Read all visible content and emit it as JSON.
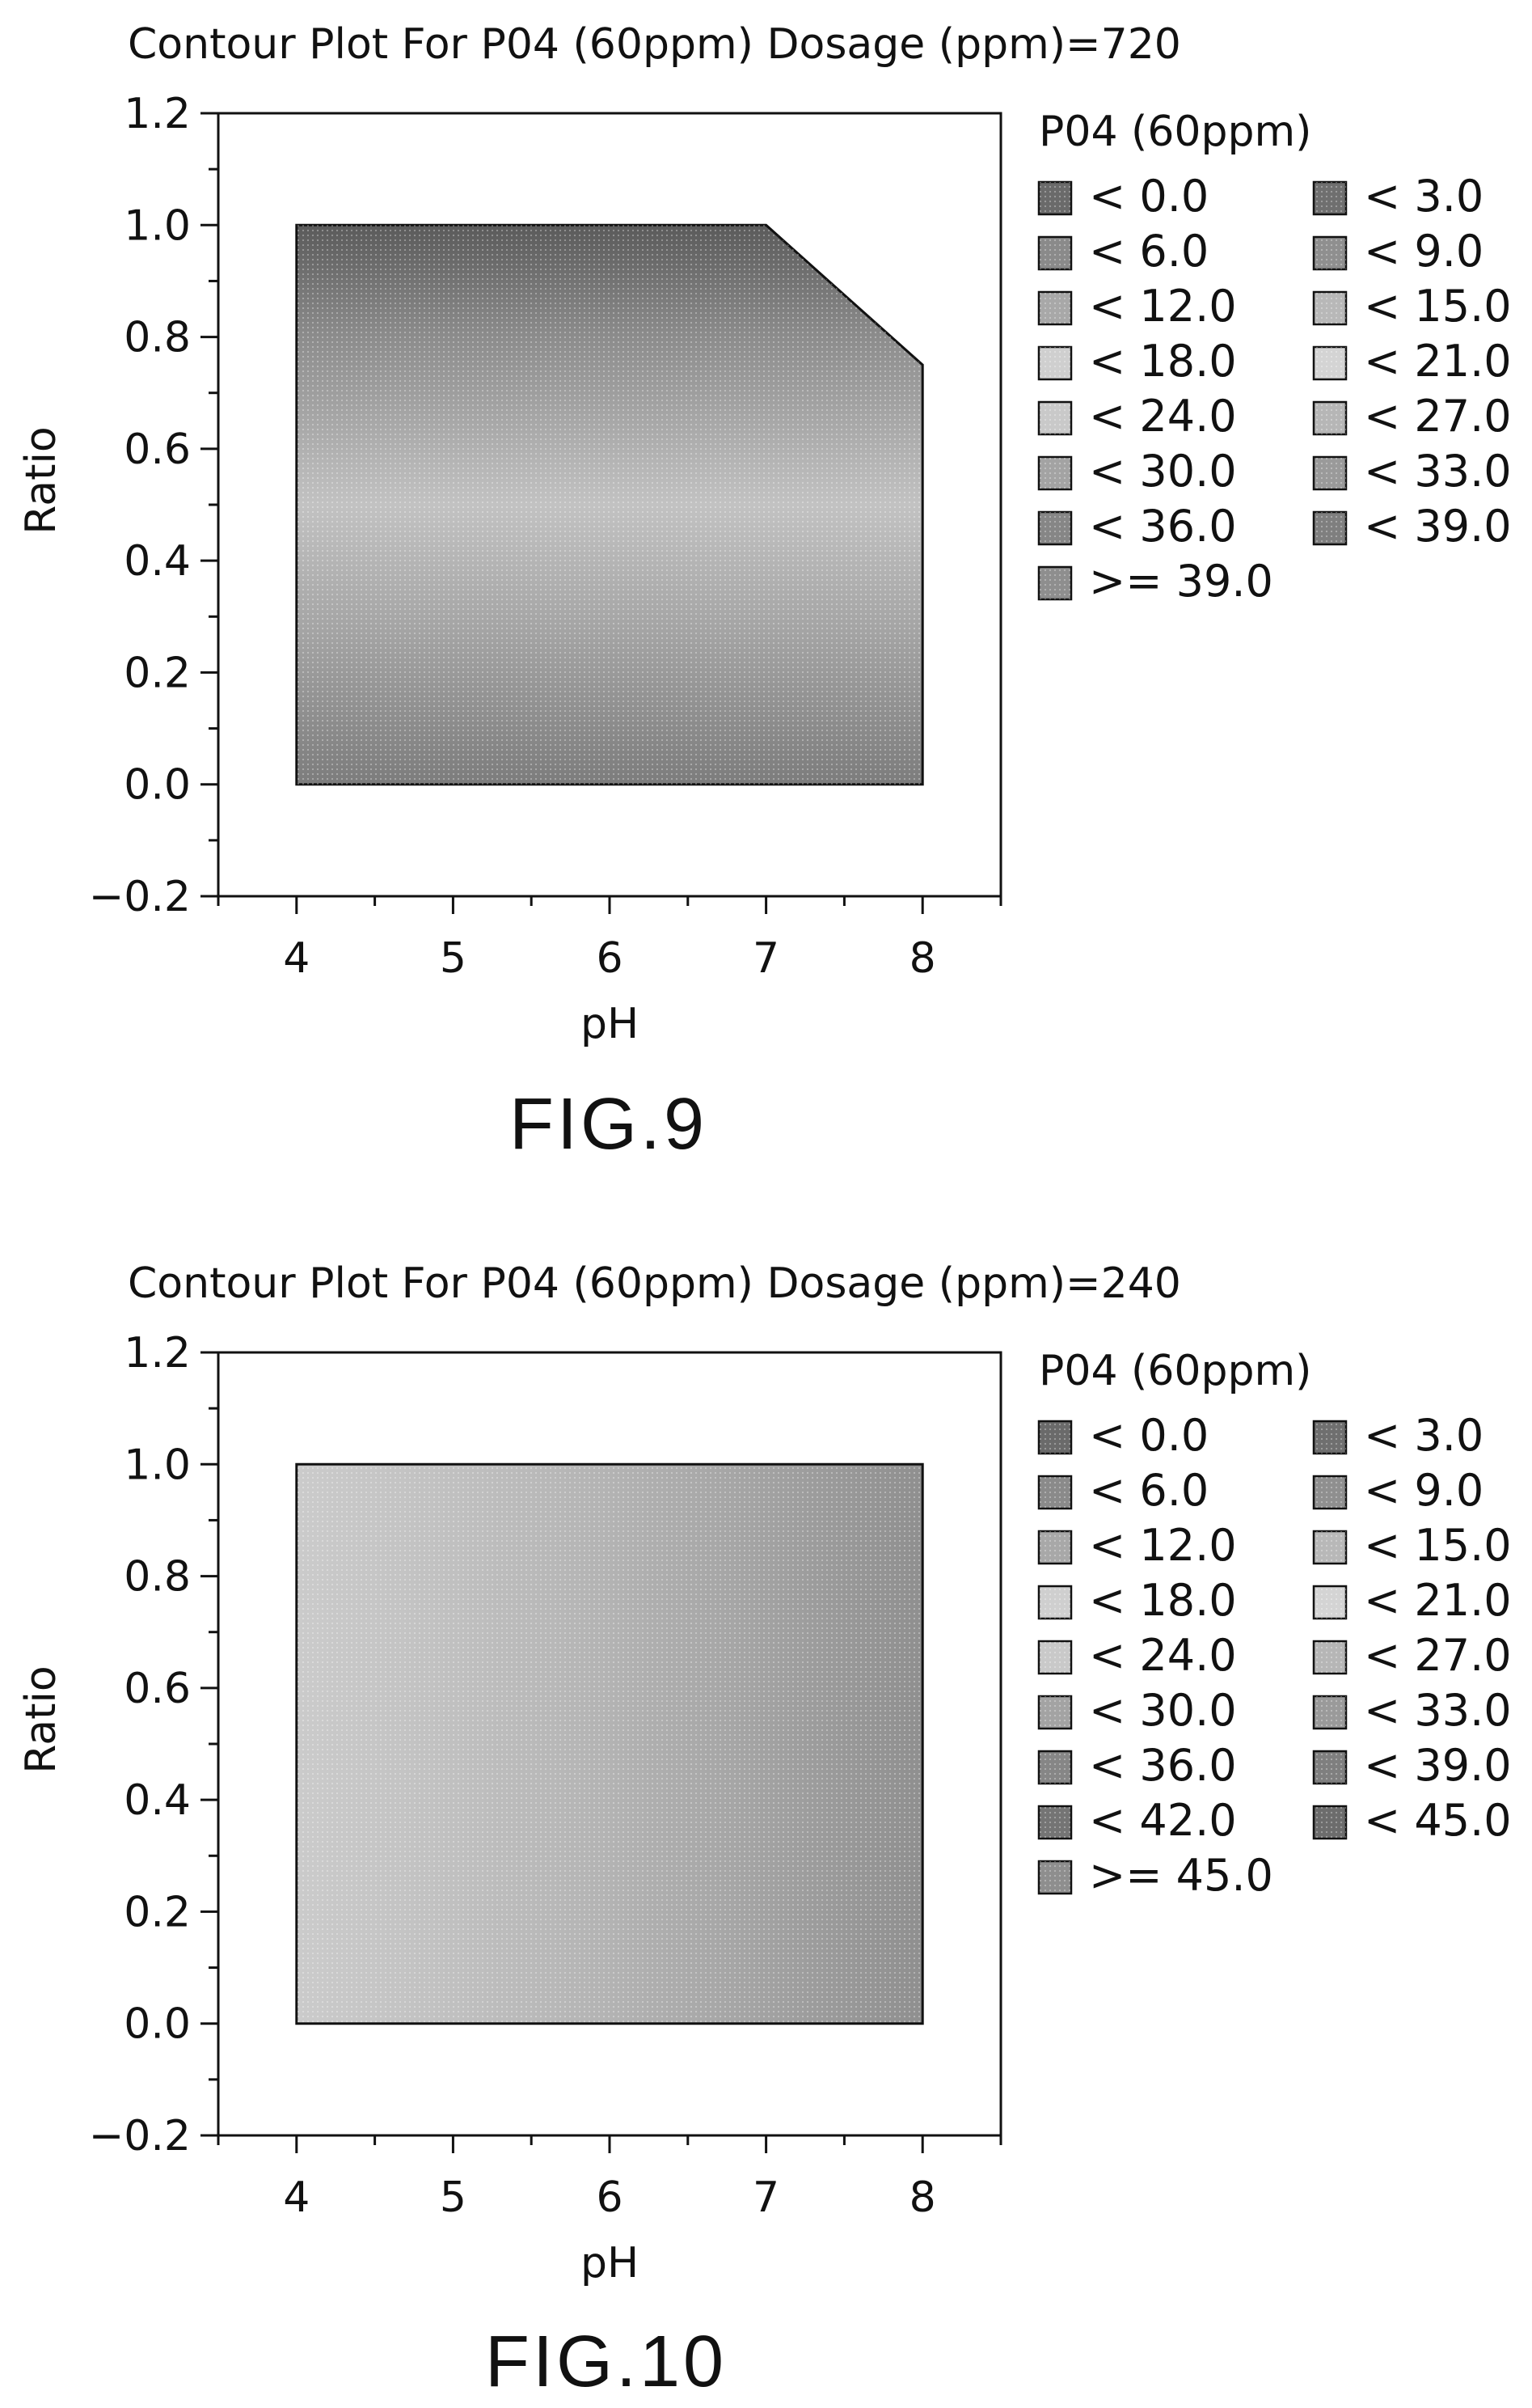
{
  "figures": [
    {
      "title": "Contour Plot For P04 (60ppm) Dosage (ppm)=720",
      "caption": "FIG.9"
    },
    {
      "title": "Contour Plot For P04 (60ppm) Dosage (ppm)=240",
      "caption": "FIG.10"
    }
  ],
  "chart_data": [
    {
      "type": "heatmap",
      "title": "Contour Plot For P04 (60ppm) Dosage (ppm)=720",
      "xlabel": "pH",
      "ylabel": "Ratio",
      "xlim": [
        3.5,
        8.5
      ],
      "ylim": [
        -0.2,
        1.2
      ],
      "x_ticks": [
        "4",
        "5",
        "6",
        "7",
        "8"
      ],
      "x_tick_values": [
        4,
        5,
        6,
        7,
        8
      ],
      "y_ticks": [
        "1.2",
        "1.0",
        "0.8",
        "0.6",
        "0.4",
        "0.2",
        "0.0",
        "−0.2"
      ],
      "y_tick_values": [
        1.2,
        1.0,
        0.8,
        0.6,
        0.4,
        0.2,
        0.0,
        -0.2
      ],
      "region_polygon": [
        [
          4,
          0
        ],
        [
          8,
          0
        ],
        [
          8,
          0.75
        ],
        [
          7,
          1.0
        ],
        [
          4,
          1.0
        ]
      ],
      "shading_profile": {
        "ratio": [
          0.0,
          0.2,
          0.5,
          0.8,
          1.0
        ],
        "gray": [
          "#7c7c7c",
          "#9a9a9a",
          "#c2c2c2",
          "#8c8c8c",
          "#5a5a5a"
        ]
      },
      "legend": {
        "title": "P04 (60ppm)",
        "position": "right",
        "entries": [
          "< 0.0",
          "< 3.0",
          "< 6.0",
          "< 9.0",
          "< 12.0",
          "< 15.0",
          "< 18.0",
          "< 21.0",
          "< 24.0",
          "< 27.0",
          "< 30.0",
          "< 33.0",
          "< 36.0",
          "< 39.0",
          ">= 39.0"
        ],
        "colors": [
          "#6a6a6a",
          "#6f6f6f",
          "#8a8a8a",
          "#8f8f8f",
          "#a8a8a8",
          "#b8b8b8",
          "#cfcfcf",
          "#d4d4d4",
          "#c9c9c9",
          "#b6b6b6",
          "#a3a3a3",
          "#9a9a9a",
          "#868686",
          "#7f7f7f",
          "#8e8e8e"
        ]
      },
      "grid": false
    },
    {
      "type": "heatmap",
      "title": "Contour Plot For P04 (60ppm) Dosage (ppm)=240",
      "xlabel": "pH",
      "ylabel": "Ratio",
      "xlim": [
        3.5,
        8.5
      ],
      "ylim": [
        -0.2,
        1.2
      ],
      "x_ticks": [
        "4",
        "5",
        "6",
        "7",
        "8"
      ],
      "x_tick_values": [
        4,
        5,
        6,
        7,
        8
      ],
      "y_ticks": [
        "1.2",
        "1.0",
        "0.8",
        "0.6",
        "0.4",
        "0.2",
        "0.0",
        "−0.2"
      ],
      "y_tick_values": [
        1.2,
        1.0,
        0.8,
        0.6,
        0.4,
        0.2,
        0.0,
        -0.2
      ],
      "region_polygon": [
        [
          4,
          0
        ],
        [
          8,
          0
        ],
        [
          8,
          1.0
        ],
        [
          4,
          1.0
        ]
      ],
      "shading_profile": {
        "ph": [
          4,
          5,
          6,
          7,
          8
        ],
        "gray": [
          "#cbcbcb",
          "#c0c0c0",
          "#b3b3b3",
          "#a2a2a2",
          "#8f8f8f"
        ]
      },
      "legend": {
        "title": "P04 (60ppm)",
        "position": "right",
        "entries": [
          "< 0.0",
          "< 3.0",
          "< 6.0",
          "< 9.0",
          "< 12.0",
          "< 15.0",
          "< 18.0",
          "< 21.0",
          "< 24.0",
          "< 27.0",
          "< 30.0",
          "< 33.0",
          "< 36.0",
          "< 39.0",
          "< 42.0",
          "< 45.0",
          ">= 45.0"
        ],
        "colors": [
          "#6a6a6a",
          "#6f6f6f",
          "#8a8a8a",
          "#8f8f8f",
          "#a8a8a8",
          "#b8b8b8",
          "#cfcfcf",
          "#d4d4d4",
          "#c9c9c9",
          "#b6b6b6",
          "#a3a3a3",
          "#9a9a9a",
          "#868686",
          "#7f7f7f",
          "#747474",
          "#6c6c6c",
          "#8e8e8e"
        ]
      },
      "grid": false
    }
  ]
}
